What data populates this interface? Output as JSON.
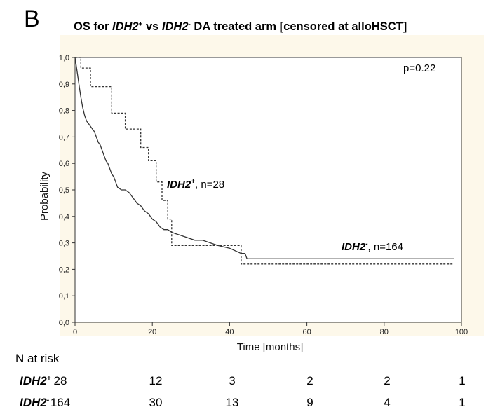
{
  "panel_label": "B",
  "chart_data": {
    "type": "line",
    "chart_kind": "kaplan-meier step curve",
    "title": {
      "prefix": "OS for ",
      "group_a": "IDH2",
      "group_a_sup": "+",
      "middle": " vs ",
      "group_b": "IDH2",
      "group_b_sup": "-",
      "suffix": " DA treated arm [censored at alloHSCT]"
    },
    "xlabel": "Time [months]",
    "ylabel": "Probability",
    "xlim": [
      0,
      100
    ],
    "ylim": [
      0,
      1
    ],
    "x_ticks": [
      0,
      20,
      40,
      60,
      80,
      100
    ],
    "x_tick_labels": [
      "0",
      "20",
      "40",
      "60",
      "80",
      "100"
    ],
    "y_ticks": [
      0,
      0.1,
      0.2,
      0.3,
      0.4,
      0.5,
      0.6,
      0.7,
      0.8,
      0.9,
      1.0
    ],
    "y_tick_labels": [
      "0,0",
      "0,1",
      "0,2",
      "0,3",
      "0,4",
      "0,5",
      "0,6",
      "0,7",
      "0,8",
      "0,9",
      "1,0"
    ],
    "grid": false,
    "plot_background": "#fdf8ea",
    "annotations": {
      "p_value": "p=0.22",
      "idh2_pos_name": "IDH2",
      "idh2_pos_sup": "+",
      "idh2_pos_suffix": ", n=28",
      "idh2_neg_name": "IDH2",
      "idh2_neg_sup": "-",
      "idh2_neg_suffix": ", n=164"
    },
    "series": [
      {
        "name": "IDH2+, n=28",
        "line_style": "dashed",
        "color": "#333333",
        "x": [
          0,
          1.5,
          1.5,
          4,
          4,
          9.5,
          9.5,
          13,
          13,
          17,
          17,
          19,
          19,
          21,
          21,
          22.5,
          22.5,
          24,
          24,
          25,
          25,
          43,
          43,
          98
        ],
        "y": [
          1.0,
          1.0,
          0.96,
          0.96,
          0.89,
          0.89,
          0.79,
          0.79,
          0.73,
          0.73,
          0.66,
          0.66,
          0.61,
          0.61,
          0.53,
          0.53,
          0.46,
          0.46,
          0.39,
          0.39,
          0.29,
          0.29,
          0.22,
          0.22
        ]
      },
      {
        "name": "IDH2-, n=164",
        "line_style": "solid",
        "color": "#333333",
        "x": [
          0,
          0.5,
          1,
          1.5,
          2,
          2.5,
          3,
          3.5,
          4,
          4.5,
          5,
          5.5,
          6,
          6.5,
          7,
          7.5,
          8,
          8.5,
          9,
          9.5,
          10,
          10.5,
          11,
          12,
          13,
          14,
          15,
          16,
          17,
          18,
          19,
          20,
          21,
          22,
          23,
          24,
          25,
          27,
          29,
          31,
          33,
          35,
          37,
          40,
          43,
          44,
          44.5,
          60,
          80,
          98
        ],
        "y": [
          1.0,
          0.95,
          0.9,
          0.85,
          0.81,
          0.78,
          0.76,
          0.75,
          0.74,
          0.73,
          0.72,
          0.7,
          0.68,
          0.67,
          0.65,
          0.63,
          0.61,
          0.6,
          0.58,
          0.56,
          0.55,
          0.53,
          0.51,
          0.5,
          0.5,
          0.49,
          0.47,
          0.45,
          0.44,
          0.42,
          0.41,
          0.39,
          0.38,
          0.36,
          0.35,
          0.35,
          0.34,
          0.33,
          0.32,
          0.31,
          0.31,
          0.3,
          0.29,
          0.28,
          0.26,
          0.26,
          0.24,
          0.24,
          0.24,
          0.24
        ]
      }
    ]
  },
  "risk_table": {
    "header": "N at risk",
    "rows": [
      {
        "name": "IDH2",
        "sup": "+",
        "values": [
          "28",
          "12",
          "3",
          "2",
          "2",
          "1"
        ]
      },
      {
        "name": "IDH2",
        "sup": "-",
        "values": [
          "164",
          "30",
          "13",
          "9",
          "4",
          "1"
        ]
      }
    ]
  }
}
